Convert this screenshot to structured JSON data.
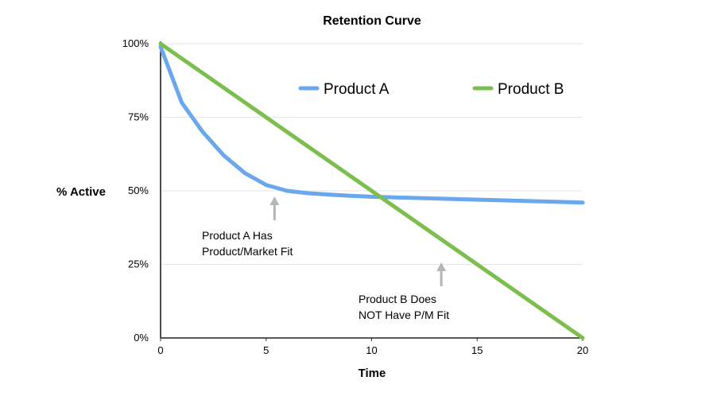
{
  "chart_data": {
    "type": "line",
    "title": "Retention Curve",
    "xlabel": "Time",
    "ylabel": "% Active",
    "xlim": [
      0,
      20
    ],
    "ylim": [
      0,
      100
    ],
    "x_ticks": [
      "0",
      "5",
      "10",
      "15",
      "20"
    ],
    "y_ticks": [
      "0%",
      "25%",
      "50%",
      "75%",
      "100%"
    ],
    "grid": true,
    "legend_position": "top-right",
    "series": [
      {
        "name": "Product A",
        "color": "#6aa7ec",
        "points": [
          [
            0,
            99
          ],
          [
            1,
            80
          ],
          [
            2,
            70
          ],
          [
            3,
            62
          ],
          [
            4,
            56
          ],
          [
            5,
            52
          ],
          [
            6,
            50
          ],
          [
            7,
            49.2
          ],
          [
            8,
            48.7
          ],
          [
            9,
            48.3
          ],
          [
            10,
            48
          ],
          [
            12,
            47.6
          ],
          [
            14,
            47.2
          ],
          [
            16,
            46.8
          ],
          [
            18,
            46.4
          ],
          [
            20,
            46
          ]
        ]
      },
      {
        "name": "Product B",
        "color": "#7cbf4e",
        "points": [
          [
            0,
            100
          ],
          [
            20,
            0
          ]
        ]
      }
    ],
    "annotations": [
      {
        "lines": [
          "Product A Has",
          "Product/Market Fit"
        ],
        "arrow_at": [
          5.4,
          47
        ]
      },
      {
        "lines": [
          "Product B Does",
          "NOT Have P/M Fit"
        ],
        "arrow_at": [
          13.3,
          25
        ]
      }
    ]
  }
}
